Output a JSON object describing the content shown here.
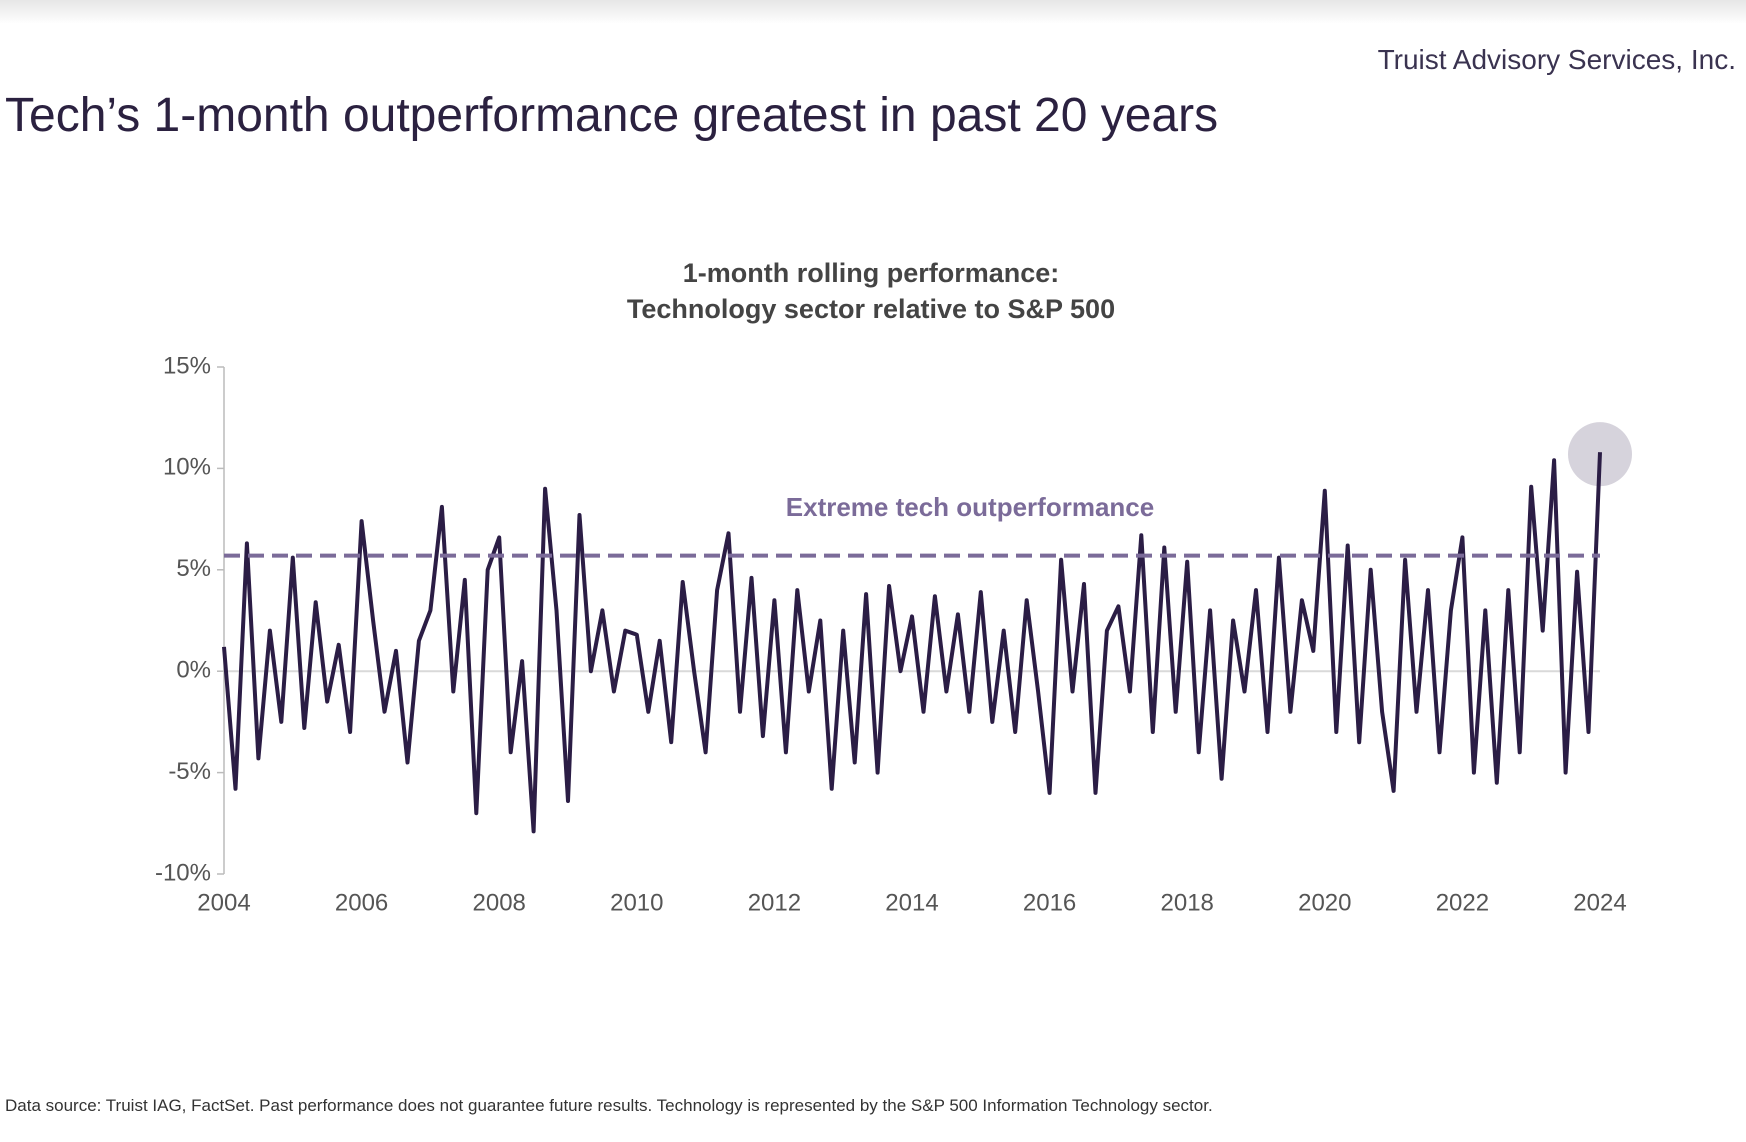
{
  "header": {
    "company": "Truist Advisory Services, Inc.",
    "title": "Tech’s 1-month outperformance greatest in past 20 years"
  },
  "chart_data": {
    "type": "line",
    "title": "1-month rolling performance:",
    "subtitle": "Technology sector relative to S&P 500",
    "annotation": "Extreme tech outperformance",
    "reference_line": 5.7,
    "color": "#2b1d45",
    "x": [
      2004,
      2004.167,
      2004.333,
      2004.5,
      2004.667,
      2004.833,
      2005,
      2005.167,
      2005.333,
      2005.5,
      2005.667,
      2005.833,
      2006,
      2006.167,
      2006.333,
      2006.5,
      2006.667,
      2006.833,
      2007,
      2007.167,
      2007.333,
      2007.5,
      2007.667,
      2007.833,
      2008,
      2008.167,
      2008.333,
      2008.5,
      2008.667,
      2008.833,
      2009,
      2009.167,
      2009.333,
      2009.5,
      2009.667,
      2009.833,
      2010,
      2010.167,
      2010.333,
      2010.5,
      2010.667,
      2010.833,
      2011,
      2011.167,
      2011.333,
      2011.5,
      2011.667,
      2011.833,
      2012,
      2012.167,
      2012.333,
      2012.5,
      2012.667,
      2012.833,
      2013,
      2013.167,
      2013.333,
      2013.5,
      2013.667,
      2013.833,
      2014,
      2014.167,
      2014.333,
      2014.5,
      2014.667,
      2014.833,
      2015,
      2015.167,
      2015.333,
      2015.5,
      2015.667,
      2015.833,
      2016,
      2016.167,
      2016.333,
      2016.5,
      2016.667,
      2016.833,
      2017,
      2017.167,
      2017.333,
      2017.5,
      2017.667,
      2017.833,
      2018,
      2018.167,
      2018.333,
      2018.5,
      2018.667,
      2018.833,
      2019,
      2019.167,
      2019.333,
      2019.5,
      2019.667,
      2019.833,
      2020,
      2020.167,
      2020.333,
      2020.5,
      2020.667,
      2020.833,
      2021,
      2021.167,
      2021.333,
      2021.5,
      2021.667,
      2021.833,
      2022,
      2022.167,
      2022.333,
      2022.5,
      2022.667,
      2022.833,
      2023,
      2023.167,
      2023.333,
      2023.5,
      2023.667,
      2023.833,
      2024
    ],
    "values": [
      1.2,
      -5.8,
      6.3,
      -4.3,
      2.0,
      -2.5,
      5.6,
      -2.8,
      3.4,
      -1.5,
      1.3,
      -3.0,
      7.4,
      2.5,
      -2.0,
      1.0,
      -4.5,
      1.5,
      3.0,
      8.1,
      -1.0,
      4.5,
      -7.0,
      5.0,
      6.6,
      -4.0,
      0.5,
      -7.9,
      9.0,
      3.0,
      -6.4,
      7.7,
      0.0,
      3.0,
      -1.0,
      2.0,
      1.8,
      -2.0,
      1.5,
      -3.5,
      4.4,
      0.0,
      -4.0,
      4.0,
      6.8,
      -2.0,
      4.6,
      -3.2,
      3.5,
      -4.0,
      4.0,
      -1.0,
      2.5,
      -5.8,
      2.0,
      -4.5,
      3.8,
      -5.0,
      4.2,
      0.0,
      2.7,
      -2.0,
      3.7,
      -1.0,
      2.8,
      -2.0,
      3.9,
      -2.5,
      2.0,
      -3.0,
      3.5,
      -1.0,
      -6.0,
      5.5,
      -1.0,
      4.3,
      -6.0,
      2.0,
      3.2,
      -1.0,
      6.7,
      -3.0,
      6.1,
      -2.0,
      5.4,
      -4.0,
      3.0,
      -5.3,
      2.5,
      -1.0,
      4.0,
      -3.0,
      5.6,
      -2.0,
      3.5,
      1.0,
      8.9,
      -3.0,
      6.2,
      -3.5,
      5.0,
      -2.0,
      -5.9,
      5.5,
      -2.0,
      4.0,
      -4.0,
      3.0,
      6.6,
      -5.0,
      3.0,
      -5.5,
      4.0,
      -4.0,
      9.1,
      2.0,
      10.4,
      -5.0,
      4.9,
      -3.0,
      10.8
    ],
    "xlim": [
      2004,
      2024
    ],
    "xticks": [
      2004,
      2006,
      2008,
      2010,
      2012,
      2014,
      2016,
      2018,
      2020,
      2022,
      2024
    ],
    "ylim": [
      -10,
      15
    ],
    "yticks": [
      {
        "value": -10,
        "label": "-10%"
      },
      {
        "value": -5,
        "label": "-5%"
      },
      {
        "value": 0,
        "label": "0%"
      },
      {
        "value": 5,
        "label": "5%"
      },
      {
        "value": 10,
        "label": "10%"
      },
      {
        "value": 15,
        "label": "15%"
      }
    ],
    "grid": false
  },
  "footnote": "Data source: Truist IAG, FactSet. Past performance does not guarantee future results. Technology is represented by the S&P 500 Information Technology sector."
}
